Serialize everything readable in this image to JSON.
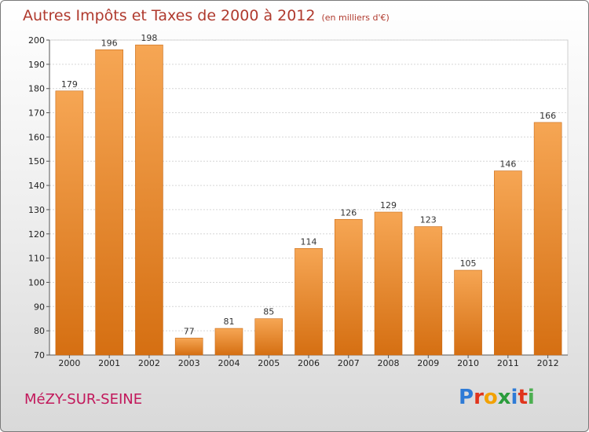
{
  "title": "Autres Impôts et Taxes de 2000 à 2012",
  "subtitle": "(en milliers d'€)",
  "commune": "MéZY-SUR-SEINE",
  "brand": {
    "letters": [
      "P",
      "r",
      "o",
      "x",
      "i",
      "t",
      "i"
    ],
    "colors": [
      "#2e7bd6",
      "#e0341c",
      "#f2a100",
      "#2a9c3c",
      "#2e7bd6",
      "#e0341c",
      "#4caf50"
    ]
  },
  "colors": {
    "bar_top": "#f6a654",
    "bar_bottom": "#d56f12",
    "title": "#b03a2e",
    "commune": "#c2185b"
  },
  "chart_data": {
    "type": "bar",
    "title": "Autres Impôts et Taxes de 2000 à 2012",
    "categories": [
      "2000",
      "2001",
      "2002",
      "2003",
      "2004",
      "2005",
      "2006",
      "2007",
      "2008",
      "2009",
      "2010",
      "2011",
      "2012"
    ],
    "values": [
      179,
      196,
      198,
      77,
      81,
      85,
      114,
      126,
      129,
      123,
      105,
      146,
      166
    ],
    "ylim": [
      70,
      200
    ],
    "yticks": [
      70,
      80,
      90,
      100,
      110,
      120,
      130,
      140,
      150,
      160,
      170,
      180,
      190,
      200
    ],
    "grid": true,
    "legend": "none"
  }
}
